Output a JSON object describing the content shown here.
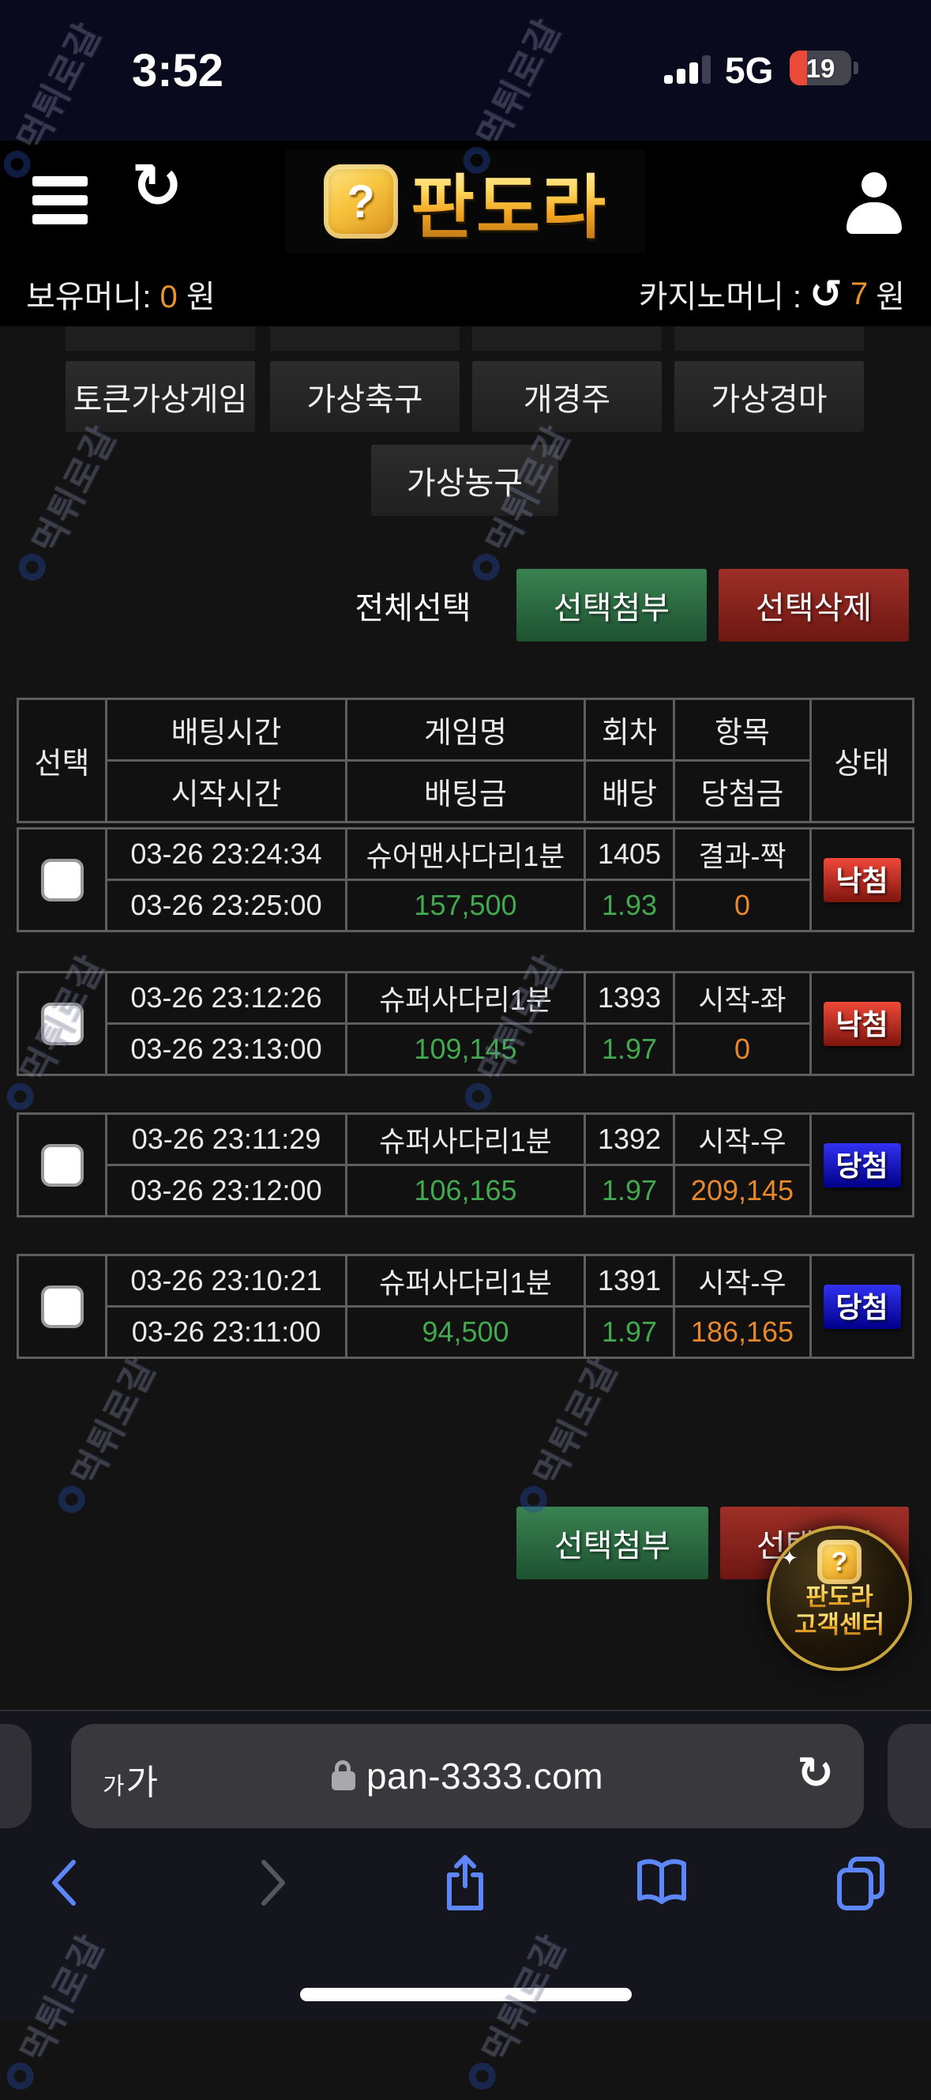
{
  "status_bar": {
    "time": "3:52",
    "network": "5G",
    "battery_percent": "19"
  },
  "header": {
    "logo_q": "?",
    "logo_text": "판도라",
    "refresh_glyph": "↻"
  },
  "wallet": {
    "own_label": "보유머니:",
    "own_value": "0",
    "own_unit": "원",
    "casino_label": "카지노머니 :",
    "casino_refresh_glyph": "↺",
    "casino_value": "7",
    "casino_unit": "원"
  },
  "game_buttons": {
    "row1": [
      "토큰가상게임",
      "가상축구",
      "개경주",
      "가상경마"
    ],
    "row2": [
      "가상농구"
    ]
  },
  "selection_bar": {
    "select_all": "전체선택",
    "attach": "선택첨부",
    "delete": "선택삭제"
  },
  "table": {
    "headers": {
      "select": "선택",
      "bet_time": "배팅시간",
      "game": "게임명",
      "round": "회차",
      "pick": "항목",
      "status": "상태",
      "start_time": "시작시간",
      "amount": "배팅금",
      "odds": "배당",
      "win": "당첨금"
    },
    "rows": [
      {
        "bet_time": "03-26 23:24:34",
        "start_time": "03-26 23:25:00",
        "game": "슈어맨사다리1분",
        "amount": "157,500",
        "round": "1405",
        "odds": "1.93",
        "pick": "결과-짝",
        "win": "0",
        "status": "낙첨",
        "status_type": "lose"
      },
      {
        "bet_time": "03-26 23:12:26",
        "start_time": "03-26 23:13:00",
        "game": "슈퍼사다리1분",
        "amount": "109,145",
        "round": "1393",
        "odds": "1.97",
        "pick": "시작-좌",
        "win": "0",
        "status": "낙첨",
        "status_type": "lose"
      },
      {
        "bet_time": "03-26 23:11:29",
        "start_time": "03-26 23:12:00",
        "game": "슈퍼사다리1분",
        "amount": "106,165",
        "round": "1392",
        "odds": "1.97",
        "pick": "시작-우",
        "win": "209,145",
        "status": "당첨",
        "status_type": "win"
      },
      {
        "bet_time": "03-26 23:10:21",
        "start_time": "03-26 23:11:00",
        "game": "슈퍼사다리1분",
        "amount": "94,500",
        "round": "1391",
        "odds": "1.97",
        "pick": "시작-우",
        "win": "186,165",
        "status": "당첨",
        "status_type": "win"
      }
    ]
  },
  "bottom_actions": {
    "attach": "선택첨부",
    "delete": "선택삭제"
  },
  "support_badge": {
    "q": "?",
    "line1": "판도라",
    "line2": "고객센터",
    "sparkle": "✦"
  },
  "browser": {
    "text_size_small": "가",
    "text_size_large": "가",
    "url": "pan-3333.com",
    "refresh_glyph": "↻"
  },
  "watermark": {
    "text": "먹튀로갈"
  },
  "colors": {
    "accent_orange": "#e8932c",
    "amount_green": "#42a94f",
    "lose_red_top": "#f04838",
    "win_blue_top": "#3131f2",
    "green_button": "#3a8251",
    "red_button": "#9e2f27",
    "safari_blue": "#5d87f8"
  }
}
